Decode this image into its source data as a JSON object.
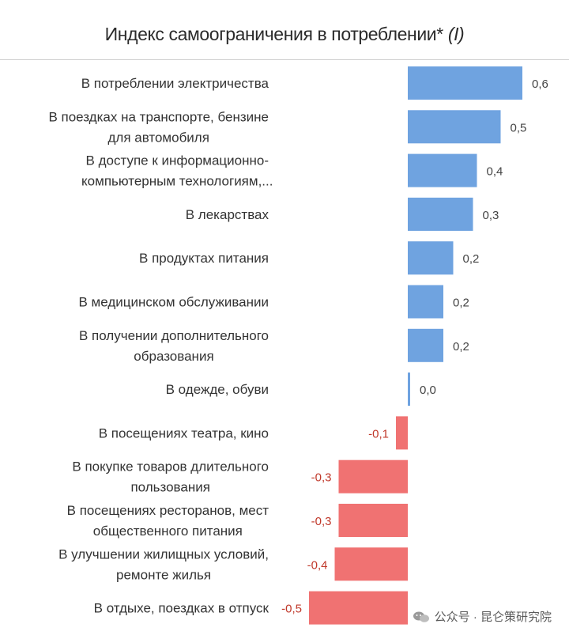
{
  "chart_data": {
    "type": "bar",
    "orientation": "horizontal",
    "title": "Индекс самоограничения в потреблении*",
    "title_suffix": "(I)",
    "categories": [
      [
        "В потреблении электричества"
      ],
      [
        "В поездках на транспорте, бензине",
        "для автомобиля"
      ],
      [
        "В доступе к информационно-",
        "компьютерным технологиям,..."
      ],
      [
        "В лекарствах"
      ],
      [
        "В продуктах питания"
      ],
      [
        "В медицинском обслуживании"
      ],
      [
        "В получении дополнительного",
        "образования"
      ],
      [
        "В одежде, обуви"
      ],
      [
        "В посещениях театра, кино"
      ],
      [
        "В покупке товаров длительного",
        "пользования"
      ],
      [
        "В посещениях ресторанов, мест",
        "общественного питания"
      ],
      [
        "В улучшении жилищных условий,",
        "ремонте жилья"
      ],
      [
        "В отдыхе, поездках в отпуск"
      ]
    ],
    "values": [
      0.58,
      0.47,
      0.35,
      0.33,
      0.23,
      0.18,
      0.18,
      0.01,
      -0.06,
      -0.35,
      -0.35,
      -0.37,
      -0.5
    ],
    "value_labels": [
      "0,6",
      "0,5",
      "0,4",
      "0,3",
      "0,2",
      "0,2",
      "0,2",
      "0,0",
      "-0,1",
      "-0,3",
      "-0,3",
      "-0,4",
      "-0,5"
    ],
    "xlim": [
      -0.5,
      0.6
    ],
    "positive_color": "#6fa3e0",
    "negative_color": "#f07272",
    "positive_label_color": "#444444",
    "negative_label_color": "#c0392b"
  },
  "watermark": {
    "text": "公众号 · 昆仑策研究院"
  }
}
